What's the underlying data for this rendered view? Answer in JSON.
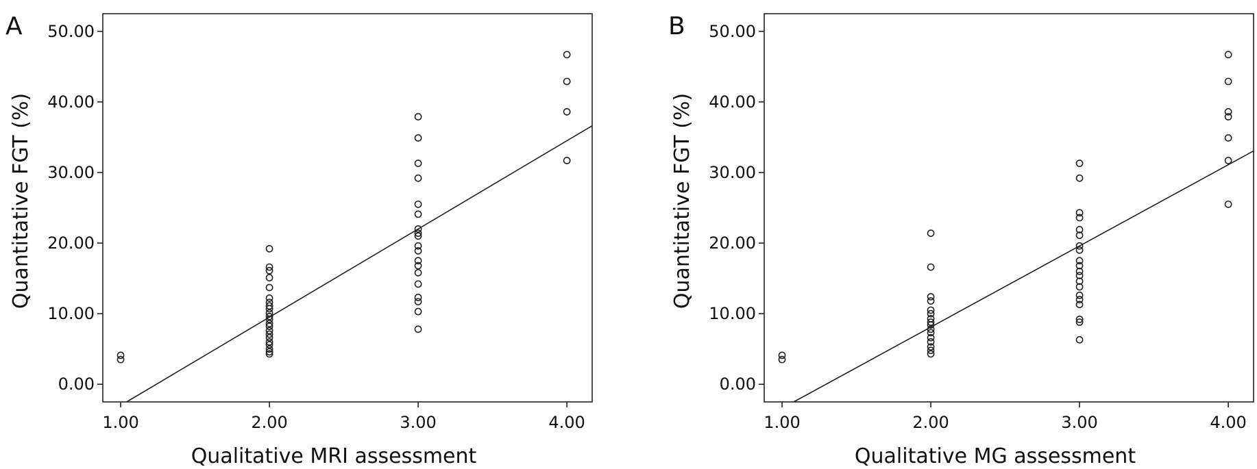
{
  "colors": {
    "axis": "#222222",
    "points": "#222222",
    "line": "#222222",
    "background": "#ffffff"
  },
  "chart_data": [
    {
      "type": "scatter",
      "panel_label": "A",
      "xlabel": "Qualitative MRI assessment",
      "ylabel": "Quantitative FGT (%)",
      "xlim": [
        0.88,
        4.17
      ],
      "ylim": [
        -2.5,
        52.5
      ],
      "xticks": [
        1,
        2,
        3,
        4
      ],
      "yticks": [
        0,
        10,
        20,
        30,
        40,
        50
      ],
      "x_tick_labels": [
        "1.00",
        "2.00",
        "3.00",
        "4.00"
      ],
      "y_tick_labels": [
        "0.00",
        "10.00",
        "20.00",
        "30.00",
        "40.00",
        "50.00"
      ],
      "grid": false,
      "fit_line": {
        "slope": 12.5,
        "intercept": -15.5
      },
      "points": [
        [
          1,
          4.1
        ],
        [
          1,
          3.5
        ],
        [
          2,
          19.2
        ],
        [
          2,
          16.6
        ],
        [
          2,
          16.1
        ],
        [
          2,
          15.1
        ],
        [
          2,
          13.7
        ],
        [
          2,
          12.2
        ],
        [
          2,
          11.6
        ],
        [
          2,
          11.1
        ],
        [
          2,
          10.7
        ],
        [
          2,
          10.1
        ],
        [
          2,
          9.6
        ],
        [
          2,
          9.2
        ],
        [
          2,
          8.6
        ],
        [
          2,
          8.2
        ],
        [
          2,
          7.6
        ],
        [
          2,
          7.1
        ],
        [
          2,
          6.6
        ],
        [
          2,
          6.0
        ],
        [
          2,
          5.6
        ],
        [
          2,
          5.0
        ],
        [
          2,
          4.6
        ],
        [
          2,
          4.3
        ],
        [
          3,
          37.9
        ],
        [
          3,
          34.9
        ],
        [
          3,
          31.3
        ],
        [
          3,
          29.2
        ],
        [
          3,
          25.5
        ],
        [
          3,
          24.1
        ],
        [
          3,
          22.0
        ],
        [
          3,
          21.4
        ],
        [
          3,
          21.0
        ],
        [
          3,
          19.6
        ],
        [
          3,
          18.9
        ],
        [
          3,
          17.5
        ],
        [
          3,
          16.8
        ],
        [
          3,
          15.8
        ],
        [
          3,
          14.2
        ],
        [
          3,
          12.3
        ],
        [
          3,
          11.7
        ],
        [
          3,
          10.3
        ],
        [
          3,
          7.8
        ],
        [
          4,
          46.7
        ],
        [
          4,
          42.9
        ],
        [
          4,
          38.6
        ],
        [
          4,
          31.7
        ]
      ]
    },
    {
      "type": "scatter",
      "panel_label": "B",
      "xlabel": "Qualitative MG assessment",
      "ylabel": "Quantitative FGT (%)",
      "xlim": [
        0.88,
        4.17
      ],
      "ylim": [
        -2.5,
        52.5
      ],
      "xticks": [
        1,
        2,
        3,
        4
      ],
      "yticks": [
        0,
        10,
        20,
        30,
        40,
        50
      ],
      "x_tick_labels": [
        "1.00",
        "2.00",
        "3.00",
        "4.00"
      ],
      "y_tick_labels": [
        "0.00",
        "10.00",
        "20.00",
        "30.00",
        "40.00",
        "50.00"
      ],
      "grid": false,
      "fit_line": {
        "slope": 11.5,
        "intercept": -14.9
      },
      "points": [
        [
          1,
          4.1
        ],
        [
          1,
          3.5
        ],
        [
          2,
          21.4
        ],
        [
          2,
          16.6
        ],
        [
          2,
          12.4
        ],
        [
          2,
          11.8
        ],
        [
          2,
          10.5
        ],
        [
          2,
          10.0
        ],
        [
          2,
          9.3
        ],
        [
          2,
          8.8
        ],
        [
          2,
          8.4
        ],
        [
          2,
          7.8
        ],
        [
          2,
          7.3
        ],
        [
          2,
          6.6
        ],
        [
          2,
          6.0
        ],
        [
          2,
          5.3
        ],
        [
          2,
          4.8
        ],
        [
          2,
          4.3
        ],
        [
          3,
          31.3
        ],
        [
          3,
          29.2
        ],
        [
          3,
          24.3
        ],
        [
          3,
          23.6
        ],
        [
          3,
          21.9
        ],
        [
          3,
          21.1
        ],
        [
          3,
          19.6
        ],
        [
          3,
          19.0
        ],
        [
          3,
          17.5
        ],
        [
          3,
          16.8
        ],
        [
          3,
          16.0
        ],
        [
          3,
          15.4
        ],
        [
          3,
          14.6
        ],
        [
          3,
          13.8
        ],
        [
          3,
          12.6
        ],
        [
          3,
          12.0
        ],
        [
          3,
          11.3
        ],
        [
          3,
          9.2
        ],
        [
          3,
          8.8
        ],
        [
          3,
          6.3
        ],
        [
          4,
          46.7
        ],
        [
          4,
          42.9
        ],
        [
          4,
          38.6
        ],
        [
          4,
          37.9
        ],
        [
          4,
          34.9
        ],
        [
          4,
          31.7
        ],
        [
          4,
          25.5
        ]
      ]
    }
  ]
}
